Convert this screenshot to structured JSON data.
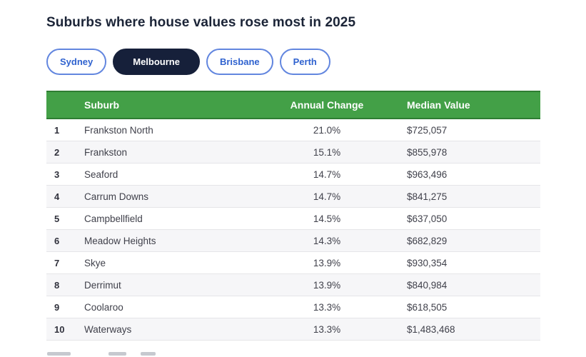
{
  "page": {
    "title": "Suburbs where house values rose most in 2025"
  },
  "tabs": [
    {
      "label": "Sydney",
      "active": false
    },
    {
      "label": "Melbourne",
      "active": true
    },
    {
      "label": "Brisbane",
      "active": false
    },
    {
      "label": "Perth",
      "active": false
    }
  ],
  "table": {
    "columns": {
      "rank": "",
      "suburb": "Suburb",
      "annual_change": "Annual Change",
      "median_value": "Median Value"
    },
    "rows": [
      {
        "rank": "1",
        "suburb": "Frankston North",
        "annual_change": "21.0%",
        "median_value": "$725,057"
      },
      {
        "rank": "2",
        "suburb": "Frankston",
        "annual_change": "15.1%",
        "median_value": "$855,978"
      },
      {
        "rank": "3",
        "suburb": "Seaford",
        "annual_change": "14.7%",
        "median_value": "$963,496"
      },
      {
        "rank": "4",
        "suburb": "Carrum Downs",
        "annual_change": "14.7%",
        "median_value": "$841,275"
      },
      {
        "rank": "5",
        "suburb": "Campbellfield",
        "annual_change": "14.5%",
        "median_value": "$637,050"
      },
      {
        "rank": "6",
        "suburb": "Meadow Heights",
        "annual_change": "14.3%",
        "median_value": "$682,829"
      },
      {
        "rank": "7",
        "suburb": "Skye",
        "annual_change": "13.9%",
        "median_value": "$930,354"
      },
      {
        "rank": "8",
        "suburb": "Derrimut",
        "annual_change": "13.9%",
        "median_value": "$840,984"
      },
      {
        "rank": "9",
        "suburb": "Coolaroo",
        "annual_change": "13.3%",
        "median_value": "$618,505"
      },
      {
        "rank": "10",
        "suburb": "Waterways",
        "annual_change": "13.3%",
        "median_value": "$1,483,468"
      }
    ]
  },
  "colors": {
    "table_header_green": "#43a047",
    "table_header_green_border": "#2f7d33",
    "tab_text_blue": "#2f62cf",
    "tab_border_blue": "#6286df",
    "active_tab_navy": "#16203a",
    "title_navy": "#1b2437",
    "row_alt_bg": "#f6f6f8"
  }
}
